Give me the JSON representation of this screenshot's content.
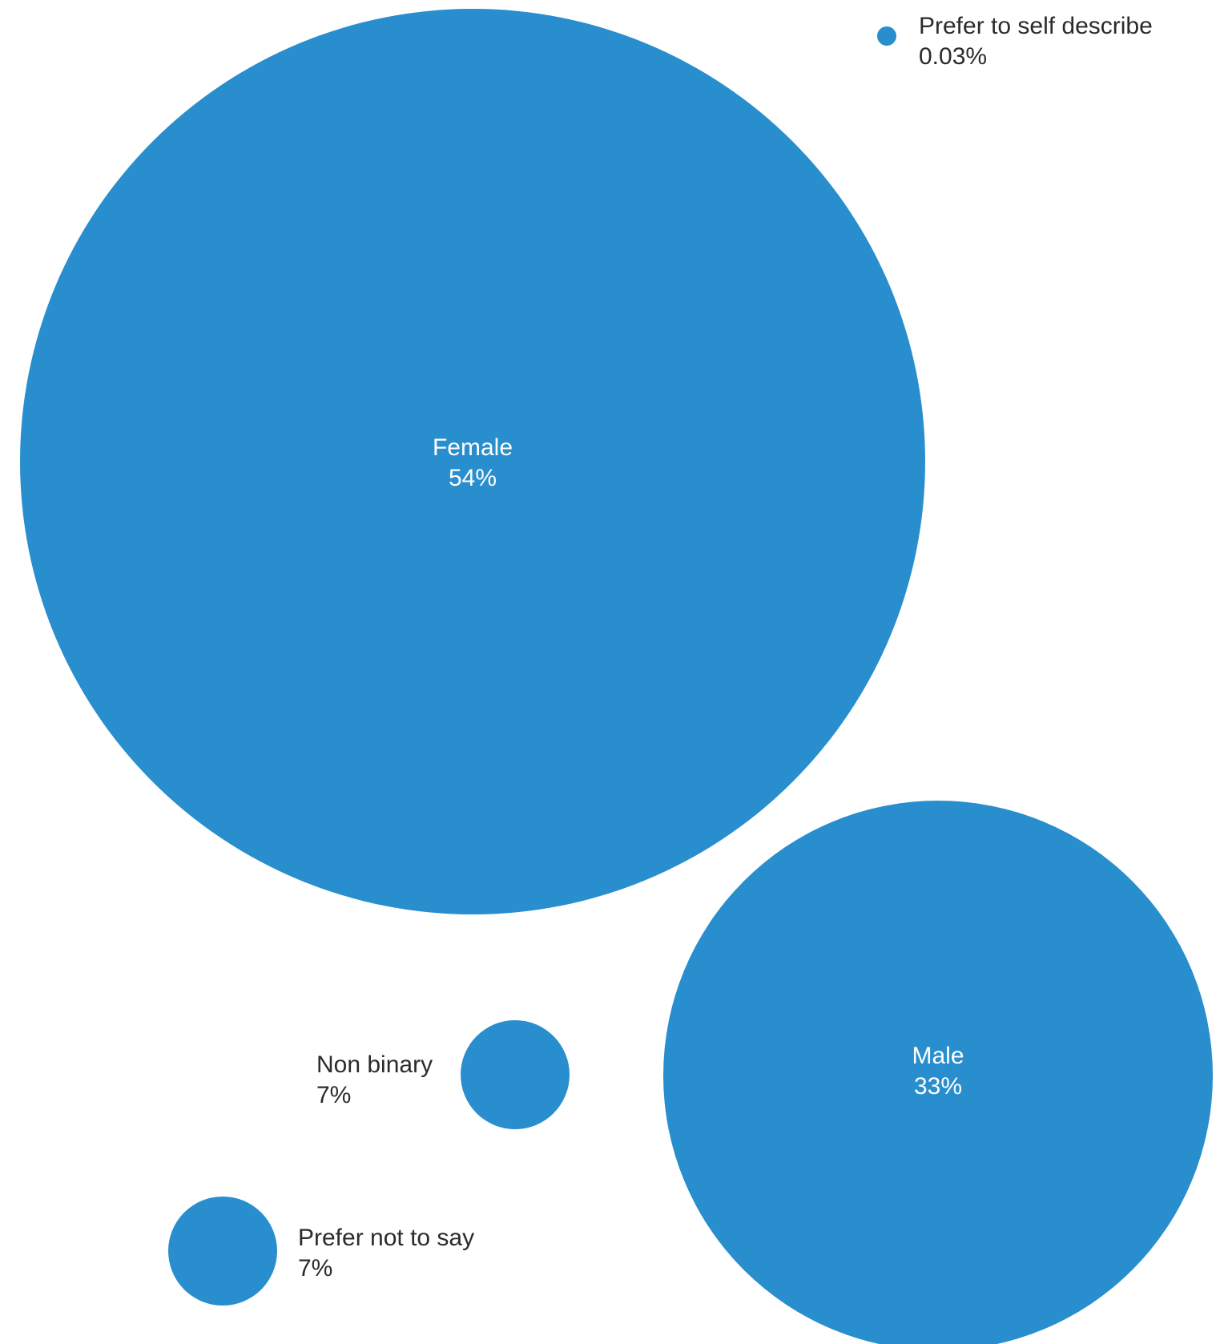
{
  "chart_data": {
    "type": "bubble",
    "color": "#288ECE",
    "inside_text_color": "#FFFFFF",
    "outside_text_color": "#2B2B2B",
    "items": [
      {
        "label": "Female",
        "value_label": "54%",
        "value": 54
      },
      {
        "label": "Male",
        "value_label": "33%",
        "value": 33
      },
      {
        "label": "Non binary",
        "value_label": "7%",
        "value": 7
      },
      {
        "label": "Prefer not to say",
        "value_label": "7%",
        "value": 7
      },
      {
        "label": "Prefer to self describe",
        "value_label": "0.03%",
        "value": 0.03
      }
    ]
  }
}
